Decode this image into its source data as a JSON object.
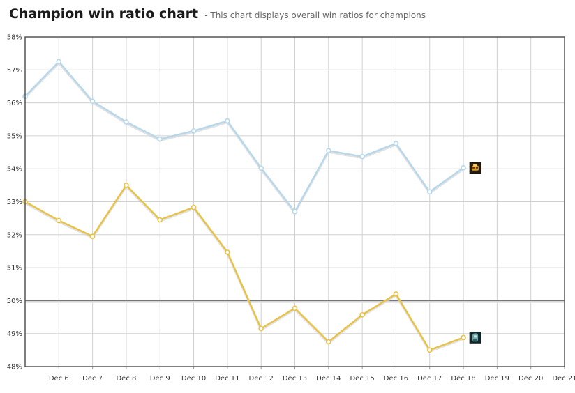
{
  "header": {
    "title": "Champion win ratio chart",
    "subtitle": "- This chart displays overall win ratios for champions"
  },
  "colors": {
    "series1": "#b7d7ea",
    "series2": "#e8c247",
    "grid": "#d0d0d0",
    "reference_line": "#777777",
    "border": "#555555"
  },
  "chart_data": {
    "type": "line",
    "title": "Champion win ratio chart",
    "subtitle": "- This chart displays overall win ratios for champions",
    "x_tick_labels": [
      "Dec 6",
      "Dec 7",
      "Dec 8",
      "Dec 9",
      "Dec 10",
      "Dec 11",
      "Dec 12",
      "Dec 13",
      "Dec 14",
      "Dec 15",
      "Dec 16",
      "Dec 17",
      "Dec 18",
      "Dec 19",
      "Dec 20",
      "Dec 21"
    ],
    "y_tick_labels": [
      "48%",
      "49%",
      "50%",
      "51%",
      "52%",
      "53%",
      "54%",
      "55%",
      "56%",
      "57%",
      "58%"
    ],
    "ylim": [
      48,
      58
    ],
    "grid": true,
    "reference_line": 50,
    "series": [
      {
        "icon": "champion-portrait-gold",
        "color": "#b7d7ea",
        "x": [
          "Dec 5",
          "Dec 6",
          "Dec 7",
          "Dec 8",
          "Dec 9",
          "Dec 10",
          "Dec 11",
          "Dec 12",
          "Dec 13",
          "Dec 14",
          "Dec 15",
          "Dec 16",
          "Dec 17",
          "Dec 18"
        ],
        "values": [
          56.2,
          57.25,
          56.05,
          55.42,
          54.9,
          55.15,
          55.45,
          54.02,
          52.7,
          54.55,
          54.37,
          54.77,
          53.3,
          54.03
        ]
      },
      {
        "icon": "champion-portrait-teal",
        "color": "#e8c247",
        "x": [
          "Dec 5",
          "Dec 6",
          "Dec 7",
          "Dec 8",
          "Dec 9",
          "Dec 10",
          "Dec 11",
          "Dec 12",
          "Dec 13",
          "Dec 14",
          "Dec 15",
          "Dec 16",
          "Dec 17",
          "Dec 18"
        ],
        "values": [
          53.0,
          52.43,
          51.95,
          53.5,
          52.45,
          52.83,
          51.47,
          49.15,
          49.77,
          48.75,
          49.57,
          50.2,
          48.5,
          48.88
        ]
      }
    ]
  }
}
